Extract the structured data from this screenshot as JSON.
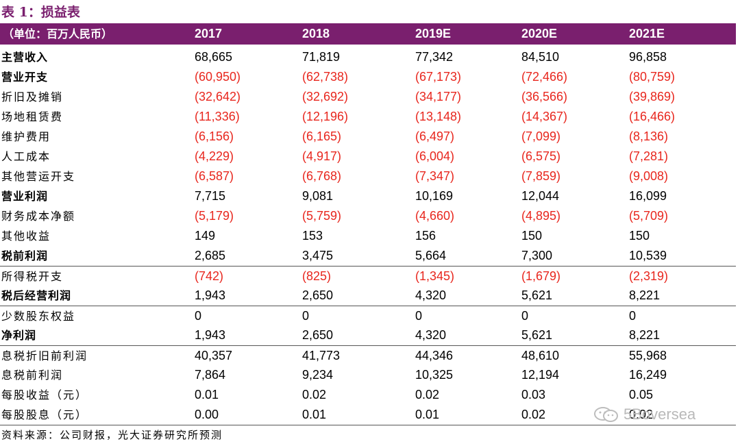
{
  "title": "表 1：损益表",
  "header": {
    "unit": "（单位：百万人民币）",
    "years": [
      "2017",
      "2018",
      "2019E",
      "2020E",
      "2021E"
    ]
  },
  "colors": {
    "accent": "#7a1f6e",
    "negative": "#e8261d"
  },
  "rows": [
    {
      "label": "主营收入",
      "bold": true,
      "values": [
        "68,665",
        "71,819",
        "77,342",
        "84,510",
        "96,858"
      ]
    },
    {
      "label": "营业开支",
      "bold": true,
      "values": [
        "(60,950)",
        "(62,738)",
        "(67,173)",
        "(72,466)",
        "(80,759)"
      ]
    },
    {
      "label": "折旧及摊销",
      "bold": false,
      "values": [
        "(32,642)",
        "(32,692)",
        "(34,177)",
        "(36,566)",
        "(39,869)"
      ]
    },
    {
      "label": "场地租赁费",
      "bold": false,
      "values": [
        "(11,336)",
        "(12,196)",
        "(13,148)",
        "(14,367)",
        "(16,466)"
      ]
    },
    {
      "label": "维护费用",
      "bold": false,
      "values": [
        "(6,156)",
        "(6,165)",
        "(6,497)",
        "(7,099)",
        "(8,136)"
      ]
    },
    {
      "label": "人工成本",
      "bold": false,
      "values": [
        "(4,229)",
        "(4,917)",
        "(6,004)",
        "(6,575)",
        "(7,281)"
      ]
    },
    {
      "label": "其他营运开支",
      "bold": false,
      "values": [
        "(6,587)",
        "(6,768)",
        "(7,347)",
        "(7,859)",
        "(9,008)"
      ]
    },
    {
      "label": "营业利润",
      "bold": true,
      "values": [
        "7,715",
        "9,081",
        "10,169",
        "12,044",
        "16,099"
      ]
    },
    {
      "label": "财务成本净额",
      "bold": false,
      "values": [
        "(5,179)",
        "(5,759)",
        "(4,660)",
        "(4,895)",
        "(5,709)"
      ]
    },
    {
      "label": "其他收益",
      "bold": false,
      "values": [
        "149",
        "153",
        "156",
        "150",
        "150"
      ]
    },
    {
      "label": "税前利润",
      "bold": true,
      "values": [
        "2,685",
        "3,475",
        "5,664",
        "7,300",
        "10,539"
      ]
    },
    {
      "label": "所得税开支",
      "bold": false,
      "sep": true,
      "values": [
        "(742)",
        "(825)",
        "(1,345)",
        "(1,679)",
        "(2,319)"
      ]
    },
    {
      "label": "税后经营利润",
      "bold": true,
      "values": [
        "1,943",
        "2,650",
        "4,320",
        "5,621",
        "8,221"
      ]
    },
    {
      "label": "少数股东权益",
      "bold": false,
      "sep": true,
      "values": [
        "0",
        "0",
        "0",
        "0",
        "0"
      ]
    },
    {
      "label": "净利润",
      "bold": true,
      "values": [
        "1,943",
        "2,650",
        "4,320",
        "5,621",
        "8,221"
      ]
    },
    {
      "label": "息税折旧前利润",
      "bold": false,
      "sep": true,
      "values": [
        "40,357",
        "41,773",
        "44,346",
        "48,610",
        "55,968"
      ]
    },
    {
      "label": "息税前利润",
      "bold": false,
      "values": [
        "7,864",
        "9,234",
        "10,325",
        "12,194",
        "16,249"
      ]
    },
    {
      "label": "每股收益（元）",
      "bold": false,
      "values": [
        "0.01",
        "0.02",
        "0.02",
        "0.03",
        "0.05"
      ]
    },
    {
      "label": "每股股息（元）",
      "bold": false,
      "values": [
        "0.00",
        "0.01",
        "0.01",
        "0.02",
        "0.02"
      ]
    }
  ],
  "source": "资料来源：公司财报，光大证券研究所预测",
  "watermark": "5Boversea",
  "watermark_icon": "wechat-icon"
}
